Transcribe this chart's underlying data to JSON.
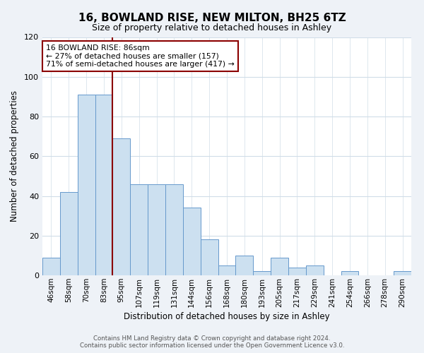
{
  "title": "16, BOWLAND RISE, NEW MILTON, BH25 6TZ",
  "subtitle": "Size of property relative to detached houses in Ashley",
  "xlabel": "Distribution of detached houses by size in Ashley",
  "ylabel": "Number of detached properties",
  "categories": [
    "46sqm",
    "58sqm",
    "70sqm",
    "83sqm",
    "95sqm",
    "107sqm",
    "119sqm",
    "131sqm",
    "144sqm",
    "156sqm",
    "168sqm",
    "180sqm",
    "193sqm",
    "205sqm",
    "217sqm",
    "229sqm",
    "241sqm",
    "254sqm",
    "266sqm",
    "278sqm",
    "290sqm"
  ],
  "values": [
    9,
    42,
    91,
    91,
    69,
    46,
    46,
    46,
    34,
    18,
    5,
    10,
    2,
    9,
    4,
    5,
    0,
    2,
    0,
    0,
    2
  ],
  "bar_color": "#cce0f0",
  "bar_edge_color": "#6699cc",
  "annotation_text": "16 BOWLAND RISE: 86sqm\n← 27% of detached houses are smaller (157)\n71% of semi-detached houses are larger (417) →",
  "annotation_box_color": "white",
  "annotation_box_edge": "darkred",
  "vline_color": "darkred",
  "ylim": [
    0,
    120
  ],
  "yticks": [
    0,
    20,
    40,
    60,
    80,
    100,
    120
  ],
  "footer1": "Contains HM Land Registry data © Crown copyright and database right 2024.",
  "footer2": "Contains public sector information licensed under the Open Government Licence v3.0.",
  "background_color": "#eef2f7",
  "plot_background": "#ffffff",
  "grid_color": "#d0dde8",
  "title_fontsize": 11,
  "subtitle_fontsize": 9,
  "label_fontsize": 8.5,
  "tick_fontsize": 7.5,
  "footer_fontsize": 6.2
}
